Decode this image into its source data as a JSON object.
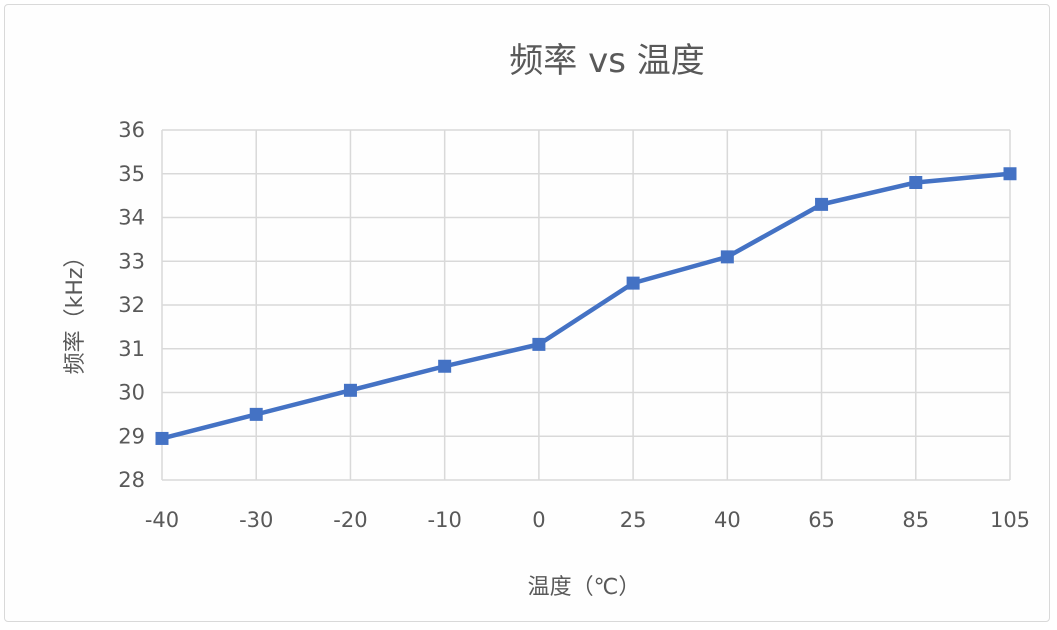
{
  "chart_data": {
    "type": "line",
    "title": "频率 vs 温度",
    "xlabel": "温度（℃）",
    "ylabel": "频率（kHz）",
    "categories": [
      "-40",
      "-30",
      "-20",
      "-10",
      "0",
      "25",
      "40",
      "65",
      "85",
      "105"
    ],
    "series": [
      {
        "values": [
          28.95,
          29.5,
          30.05,
          30.6,
          31.1,
          32.5,
          33.1,
          34.3,
          34.8,
          35.0
        ],
        "color": "#4472c4",
        "marker": "square"
      }
    ],
    "ylim": [
      28,
      36
    ],
    "yticks": [
      "28",
      "29",
      "30",
      "31",
      "32",
      "33",
      "34",
      "35",
      "36"
    ],
    "grid": true,
    "legend": "none"
  }
}
